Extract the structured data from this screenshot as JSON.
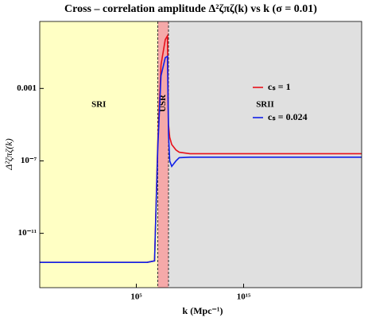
{
  "chart_data": {
    "type": "line",
    "title": "Cross – correlation amplitude Δ²ζπζ(k) vs k (σ = 0.01)",
    "x_label": "k (Mpc⁻¹)",
    "y_label": "Δ²ζπζ(k)",
    "x_scale": "log",
    "y_scale": "log",
    "xlim": [
      0.0001,
      1e+26
    ],
    "ylim": [
      1e-14,
      5
    ],
    "xticks": [
      {
        "value": 100000,
        "label": "10⁵"
      },
      {
        "value": 1000000000000000.0,
        "label": "10¹⁵"
      }
    ],
    "yticks": [
      0.001,
      {
        "value": 1e-07,
        "label": "10⁻⁷"
      },
      {
        "value": 1e-11,
        "label": "10⁻¹¹"
      }
    ],
    "regions": [
      {
        "label": "SRI",
        "from": 0.0001,
        "to": 10000000,
        "color": "#ffffc4"
      },
      {
        "label": "USR",
        "from": 10000000,
        "to": 100000000,
        "color": "#f5a9a9"
      },
      {
        "label": "SRII",
        "from": 100000000,
        "to": 1e+26,
        "color": "#e0e0e0"
      }
    ],
    "x": [
      0.0001,
      1000000,
      5000000,
      10000000,
      20000000,
      50000000,
      80000000,
      100000000,
      130000000,
      200000000,
      500000000,
      1000000000,
      10000000000,
      1000000000000,
      1e+26
    ],
    "series": [
      {
        "name": "cₛ = 1",
        "color": "#e8101a",
        "values": [
          2.5e-13,
          2.5e-13,
          3e-13,
          1e-06,
          0.02,
          0.5,
          0.8,
          1e-05,
          2e-06,
          8e-07,
          4e-07,
          3e-07,
          2.5e-07,
          2.5e-07,
          2.5e-07
        ]
      },
      {
        "name": "cₛ = 0.024",
        "color": "#1020e8",
        "values": [
          2.5e-13,
          2.5e-13,
          3e-13,
          5e-07,
          0.005,
          0.05,
          0.06,
          3e-06,
          1e-07,
          5e-08,
          1e-07,
          1.5e-07,
          1.6e-07,
          1.6e-07,
          1.6e-07
        ]
      }
    ],
    "legend_position": "right"
  }
}
